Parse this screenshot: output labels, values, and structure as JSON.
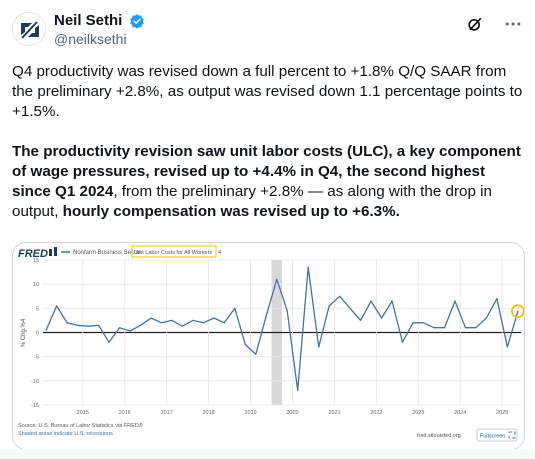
{
  "author": {
    "display_name": "Neil Sethi",
    "handle": "@neilksethi"
  },
  "tweet": {
    "para1": "Q4 productivity was revised down a full percent to +1.8% Q/Q SAAR from the preliminary +2.8%, as output was revised down 1.1 percentage points to +1.5%.",
    "para2": [
      {
        "text": "The productivity revision saw unit labor costs (ULC), a key component of wage pressures, revised up to +4.4% in Q4, the second highest since Q1 2024",
        "bold": true
      },
      {
        "text": ", from the preliminary +2.8% — as along with the drop in output, ",
        "bold": false
      },
      {
        "text": "hourly compensation was revised up to +6.3%.",
        "bold": true
      }
    ]
  },
  "chart": {
    "brand": "FRED",
    "legend_series": "Nonfarm Business Sector",
    "legend_highlight": "Unit Labor Costs for All Workers",
    "legend_suffix": "4",
    "ylabel": "% Chg.%4",
    "source_line": "Source: U.S. Bureau of Labor Statistics via FRED®",
    "shaded_note": "Shaded areas indicate U.S. recessions.",
    "site": "fred.stlouisfed.org",
    "fullscreen_label": "Fullscreen",
    "colors": {
      "line": "#4572a7",
      "highlight": "#f2c500",
      "recession": "#d8d8d8",
      "zero": "#222222"
    }
  },
  "chart_data": {
    "type": "line",
    "title": "",
    "ylabel": "% Chg.%4",
    "ylim": [
      -15,
      15
    ],
    "yticks": [
      15,
      10,
      5,
      0,
      -5,
      -10,
      -15
    ],
    "xticks": [
      "2015",
      "2016",
      "2017",
      "2018",
      "2019",
      "2020",
      "2021",
      "2022",
      "2023",
      "2024",
      "2025"
    ],
    "xrange": [
      2014.55,
      2025.95
    ],
    "recession": [
      2020.0,
      2020.25
    ],
    "grid": true,
    "series": [
      {
        "name": "",
        "x": [
          2014.625,
          2014.875,
          2015.125,
          2015.375,
          2015.625,
          2015.875,
          2016.125,
          2016.375,
          2016.625,
          2016.875,
          2017.125,
          2017.375,
          2017.625,
          2017.875,
          2018.125,
          2018.375,
          2018.625,
          2018.875,
          2019.125,
          2019.375,
          2019.625,
          2019.875,
          2020.125,
          2020.375,
          2020.625,
          2020.875,
          2021.125,
          2021.375,
          2021.625,
          2021.875,
          2022.125,
          2022.375,
          2022.625,
          2022.875,
          2023.125,
          2023.375,
          2023.625,
          2023.875,
          2024.125,
          2024.375,
          2024.625,
          2024.875,
          2025.125,
          2025.375,
          2025.625,
          2025.875
        ],
        "y": [
          0.5,
          5.5,
          2.0,
          1.5,
          1.3,
          1.5,
          -2.0,
          1.0,
          0.3,
          1.5,
          3.0,
          2.0,
          2.5,
          1.3,
          2.5,
          2.0,
          3.0,
          2.0,
          5.0,
          -2.5,
          -4.5,
          3.5,
          11.0,
          4.5,
          -12.0,
          13.5,
          -3.0,
          5.5,
          7.5,
          5.0,
          2.5,
          6.5,
          3.0,
          6.5,
          -2.0,
          2.0,
          2.0,
          1.0,
          1.0,
          6.5,
          1.0,
          1.0,
          3.0,
          7.0,
          -3.0,
          4.4
        ]
      }
    ]
  }
}
